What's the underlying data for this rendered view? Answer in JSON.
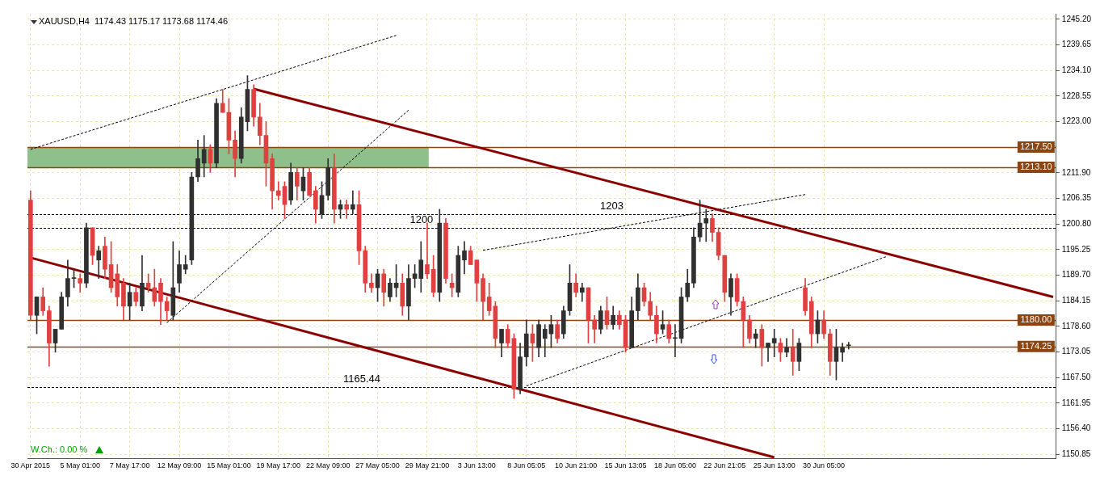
{
  "chart_data": {
    "type": "candlestick",
    "title": "XAUUSD,H4  1174.43 1175.17 1173.68 1174.46",
    "categories": [
      "30 Apr 2015",
      null,
      null,
      null,
      null,
      null,
      null,
      null,
      "5 May 01:00",
      null,
      null,
      null,
      null,
      null,
      null,
      null,
      "7 May 17:00",
      null,
      null,
      null,
      null,
      null,
      null,
      null,
      "12 May 09:00",
      null,
      null,
      null,
      null,
      null,
      null,
      null,
      "15 May 01:00",
      null,
      null,
      null,
      null,
      null,
      null,
      null,
      "19 May 17:00",
      null,
      null,
      null,
      null,
      null,
      null,
      null,
      "22 May 09:00",
      null,
      null,
      null,
      null,
      null,
      null,
      null,
      "27 May 05:00",
      null,
      null,
      null,
      null,
      null,
      null,
      null,
      "29 May 21:00",
      null,
      null,
      null,
      null,
      null,
      null,
      null,
      "3 Jun 13:00",
      null,
      null,
      null,
      null,
      null,
      null,
      null,
      "8 Jun 05:05",
      null,
      null,
      null,
      null,
      null,
      null,
      null,
      "10 Jun 21:00",
      null,
      null,
      null,
      null,
      null,
      null,
      null,
      "15 Jun 13:05",
      null,
      null,
      null,
      null,
      null,
      null,
      null,
      "18 Jun 05:00",
      null,
      null,
      null,
      null,
      null,
      null,
      null,
      "22 Jun 21:05",
      null,
      null,
      null,
      null,
      null,
      null,
      null,
      "25 Jun 13:00",
      null,
      null,
      null,
      null,
      null,
      null,
      null,
      "30 Jun 05:00",
      null,
      null,
      null,
      null,
      null,
      null,
      null,
      null,
      null,
      null,
      null,
      null,
      null,
      null,
      null,
      null,
      null,
      null,
      null,
      null,
      null,
      null,
      null,
      null,
      null,
      null,
      null,
      null,
      null,
      null,
      null,
      null,
      null,
      null,
      null,
      null,
      null
    ],
    "ohlc": [
      [
        1206,
        1208,
        1180,
        1181
      ],
      [
        1181,
        1185,
        1177,
        1185
      ],
      [
        1185,
        1187,
        1181,
        1182
      ],
      [
        1182,
        1183,
        1170,
        1175
      ],
      [
        1175,
        1178,
        1173,
        1178
      ],
      [
        1178,
        1186,
        1178,
        1185
      ],
      [
        1185,
        1193,
        1183,
        1189
      ],
      [
        1189,
        1191,
        1187,
        1189
      ],
      [
        1189,
        1190,
        1186,
        1188
      ],
      [
        1188,
        1201,
        1187,
        1200
      ],
      [
        1200,
        1200,
        1192,
        1194
      ],
      [
        1193,
        1196,
        1189,
        1195
      ],
      [
        1196,
        1198,
        1189,
        1191
      ],
      [
        1192,
        1197,
        1186,
        1187
      ],
      [
        1190,
        1192,
        1183,
        1185
      ],
      [
        1188,
        1189,
        1180,
        1183
      ],
      [
        1183,
        1188,
        1180,
        1186
      ],
      [
        1186,
        1187,
        1183,
        1184
      ],
      [
        1183,
        1194,
        1182,
        1188
      ],
      [
        1188,
        1190,
        1186,
        1187
      ],
      [
        1187,
        1191,
        1183,
        1184
      ],
      [
        1188,
        1189,
        1179,
        1184
      ],
      [
        1184,
        1185,
        1180,
        1182
      ],
      [
        1181,
        1197,
        1180,
        1187
      ],
      [
        1188,
        1195,
        1186,
        1192
      ],
      [
        1191,
        1194,
        1190,
        1192
      ],
      [
        1193,
        1212,
        1192,
        1211
      ],
      [
        1211,
        1219,
        1210,
        1215
      ],
      [
        1214,
        1220,
        1211,
        1217
      ],
      [
        1217,
        1218,
        1212,
        1214
      ],
      [
        1214,
        1228,
        1213,
        1227
      ],
      [
        1227,
        1230,
        1225,
        1225
      ],
      [
        1225,
        1228,
        1216,
        1219
      ],
      [
        1219,
        1221,
        1211,
        1215
      ],
      [
        1215,
        1226,
        1214,
        1224
      ],
      [
        1223,
        1233,
        1221,
        1230
      ],
      [
        1230,
        1231,
        1222,
        1224
      ],
      [
        1224,
        1227,
        1218,
        1220
      ],
      [
        1220,
        1223,
        1209,
        1214
      ],
      [
        1215,
        1216,
        1204,
        1208
      ],
      [
        1208,
        1210,
        1206,
        1207
      ],
      [
        1209,
        1210,
        1202,
        1205
      ],
      [
        1206,
        1214,
        1205,
        1212
      ],
      [
        1212,
        1213,
        1206,
        1209
      ],
      [
        1208,
        1213,
        1206,
        1211
      ],
      [
        1212,
        1213,
        1207,
        1207
      ],
      [
        1208,
        1209,
        1201,
        1204
      ],
      [
        1203,
        1210,
        1202,
        1207
      ],
      [
        1207,
        1215,
        1206,
        1213
      ],
      [
        1213,
        1216,
        1201,
        1204
      ],
      [
        1204,
        1206,
        1202,
        1205
      ],
      [
        1205,
        1206,
        1202,
        1204
      ],
      [
        1204,
        1208,
        1203,
        1205
      ],
      [
        1205,
        1208,
        1192,
        1195
      ],
      [
        1195,
        1196,
        1186,
        1188
      ],
      [
        1188,
        1190,
        1186,
        1187
      ],
      [
        1187,
        1191,
        1184,
        1190
      ],
      [
        1190,
        1191,
        1183,
        1186
      ],
      [
        1185,
        1189,
        1184,
        1188
      ],
      [
        1187,
        1192,
        1185,
        1188
      ],
      [
        1188,
        1190,
        1181,
        1183
      ],
      [
        1183,
        1192,
        1180,
        1189
      ],
      [
        1189,
        1192,
        1187,
        1190
      ],
      [
        1189,
        1197,
        1186,
        1193
      ],
      [
        1192,
        1201,
        1189,
        1190
      ],
      [
        1191,
        1194,
        1185,
        1186
      ],
      [
        1186,
        1204,
        1184,
        1201
      ],
      [
        1201,
        1202,
        1188,
        1189
      ],
      [
        1188,
        1190,
        1185,
        1187
      ],
      [
        1186,
        1196,
        1185,
        1194
      ],
      [
        1193,
        1197,
        1190,
        1195
      ],
      [
        1195,
        1196,
        1192,
        1192
      ],
      [
        1193,
        1193,
        1184,
        1188
      ],
      [
        1189,
        1190,
        1180,
        1184
      ],
      [
        1185,
        1188,
        1181,
        1182
      ],
      [
        1183,
        1184,
        1174,
        1176
      ],
      [
        1175,
        1178,
        1172,
        1178
      ],
      [
        1178,
        1179,
        1174,
        1175
      ],
      [
        1176,
        1177,
        1163,
        1165
      ],
      [
        1165,
        1175,
        1164,
        1172
      ],
      [
        1172,
        1180,
        1170,
        1177
      ],
      [
        1177,
        1179,
        1171,
        1175
      ],
      [
        1174,
        1180,
        1172,
        1179
      ],
      [
        1176,
        1179,
        1172,
        1178
      ],
      [
        1177,
        1181,
        1174,
        1179
      ],
      [
        1179,
        1180,
        1175,
        1176
      ],
      [
        1177,
        1183,
        1176,
        1182
      ],
      [
        1182,
        1192,
        1181,
        1188
      ],
      [
        1188,
        1190,
        1185,
        1186
      ],
      [
        1186,
        1188,
        1184,
        1187
      ],
      [
        1187,
        1187,
        1175,
        1180
      ],
      [
        1180,
        1181,
        1175,
        1178
      ],
      [
        1178,
        1183,
        1177,
        1182
      ],
      [
        1182,
        1185,
        1178,
        1179
      ],
      [
        1179,
        1183,
        1178,
        1181
      ],
      [
        1181,
        1182,
        1178,
        1179
      ],
      [
        1180,
        1181,
        1173,
        1174
      ],
      [
        1174,
        1185,
        1174,
        1182
      ],
      [
        1182,
        1190,
        1180,
        1187
      ],
      [
        1187,
        1188,
        1183,
        1184
      ],
      [
        1184,
        1186,
        1180,
        1181
      ],
      [
        1181,
        1183,
        1175,
        1177
      ],
      [
        1178,
        1182,
        1177,
        1179
      ],
      [
        1179,
        1180,
        1175,
        1176
      ],
      [
        1176,
        1179,
        1172,
        1176
      ],
      [
        1176,
        1187,
        1175,
        1185
      ],
      [
        1185,
        1191,
        1184,
        1188
      ],
      [
        1188,
        1200,
        1187,
        1198
      ],
      [
        1198,
        1206,
        1197,
        1201
      ],
      [
        1201,
        1204,
        1197,
        1202
      ],
      [
        1202,
        1203,
        1197,
        1199
      ],
      [
        1199,
        1200,
        1193,
        1194
      ],
      [
        1194,
        1194,
        1184,
        1186
      ],
      [
        1185,
        1190,
        1181,
        1189
      ],
      [
        1189,
        1190,
        1183,
        1184
      ],
      [
        1184,
        1185,
        1174,
        1180
      ],
      [
        1180,
        1181,
        1175,
        1176
      ],
      [
        1176,
        1178,
        1174,
        1177
      ],
      [
        1178,
        1179,
        1170,
        1174
      ],
      [
        1174,
        1175,
        1171,
        1175
      ],
      [
        1175,
        1178,
        1172,
        1176
      ],
      [
        1175,
        1176,
        1171,
        1173
      ],
      [
        1173,
        1176,
        1172,
        1174
      ],
      [
        1174,
        1178,
        1168,
        1171
      ],
      [
        1171,
        1176,
        1169,
        1175
      ],
      [
        1187,
        1189,
        1181,
        1182
      ],
      [
        1184,
        1185,
        1174,
        1177
      ],
      [
        1177,
        1182,
        1175,
        1180
      ],
      [
        1180,
        1182,
        1176,
        1177
      ],
      [
        1177,
        1178,
        1168,
        1171
      ],
      [
        1171,
        1178,
        1167,
        1174
      ],
      [
        1173,
        1175,
        1171,
        1174
      ],
      [
        1174.43,
        1175.17,
        1173.68,
        1174.46
      ],
      null,
      null,
      null,
      null,
      null,
      null,
      null,
      null,
      null,
      null,
      null,
      null,
      null,
      null,
      null,
      null,
      null,
      null,
      null,
      null,
      null,
      null,
      null,
      null,
      null,
      null,
      null,
      null,
      null,
      null,
      null,
      null,
      null
    ],
    "colors": [
      "#e04040",
      "#303030",
      "#e04040",
      "#e04040",
      "#303030",
      "#303030",
      "#303030",
      "#303030",
      "#e04040",
      "#303030",
      "#e04040",
      "#303030",
      "#e04040",
      "#e04040",
      "#e04040",
      "#e04040",
      "#303030",
      "#e04040",
      "#303030",
      "#e04040",
      "#e04040",
      "#e04040",
      "#e04040",
      "#303030",
      "#303030",
      "#303030",
      "#303030",
      "#303030",
      "#303030",
      "#e04040",
      "#303030",
      "#e04040",
      "#e04040",
      "#e04040",
      "#303030",
      "#303030",
      "#e04040",
      "#e04040",
      "#e04040",
      "#e04040",
      "#e04040",
      "#e04040",
      "#303030",
      "#e04040",
      "#303030",
      "#e04040",
      "#e04040",
      "#303030",
      "#303030",
      "#e04040",
      "#303030",
      "#e04040",
      "#303030",
      "#e04040",
      "#e04040",
      "#e04040",
      "#303030",
      "#e04040",
      "#303030",
      "#303030",
      "#e04040",
      "#303030",
      "#303030",
      "#303030",
      "#e04040",
      "#e04040",
      "#303030",
      "#e04040",
      "#e04040",
      "#303030",
      "#303030",
      "#e04040",
      "#e04040",
      "#e04040",
      "#e04040",
      "#e04040",
      "#303030",
      "#e04040",
      "#e04040",
      "#303030",
      "#303030",
      "#e04040",
      "#303030",
      "#303030",
      "#303030",
      "#e04040",
      "#303030",
      "#303030",
      "#e04040",
      "#303030",
      "#e04040",
      "#e04040",
      "#303030",
      "#e04040",
      "#303030",
      "#e04040",
      "#e04040",
      "#303030",
      "#303030",
      "#e04040",
      "#e04040",
      "#e04040",
      "#303030",
      "#e04040",
      "#303030",
      "#303030",
      "#303030",
      "#303030",
      "#303030",
      "#303030",
      "#e04040",
      "#e04040",
      "#e04040",
      "#303030",
      "#e04040",
      "#e04040",
      "#e04040",
      "#303030",
      "#e04040",
      "#303030",
      "#303030",
      "#e04040",
      "#303030",
      "#e04040",
      "#303030",
      "#e04040",
      "#e04040",
      "#303030",
      "#e04040",
      "#e04040",
      "#303030",
      "#303030",
      "#303030",
      null,
      null,
      null,
      null,
      null,
      null,
      null,
      null,
      null,
      null,
      null,
      null,
      null,
      null,
      null,
      null,
      null,
      null,
      null,
      null,
      null,
      null,
      null,
      null,
      null,
      null,
      null,
      null,
      null,
      null,
      null,
      null,
      null
    ],
    "series": [
      {
        "type": "line",
        "color": "#8b0000",
        "line_style": "solid",
        "values": [
          null,
          null,
          null,
          null,
          null,
          null,
          null,
          null,
          null,
          null,
          null,
          null,
          null,
          null,
          null,
          null,
          null,
          null,
          null,
          null,
          null,
          null,
          null,
          null,
          null,
          null,
          null,
          null,
          null,
          null,
          null,
          null,
          null,
          null,
          null,
          null,
          1230.1,
          null,
          null,
          null,
          null,
          null,
          null,
          null,
          null,
          null,
          null,
          null,
          null,
          null,
          null,
          null,
          null,
          null,
          null,
          null,
          null,
          null,
          null,
          null,
          null,
          null,
          null,
          null,
          null,
          null,
          null,
          null,
          null,
          null,
          null,
          null,
          null,
          null,
          null,
          null,
          null,
          null,
          null,
          null,
          null,
          null,
          null,
          null,
          null,
          null,
          null,
          null,
          null,
          null,
          null,
          null,
          null,
          null,
          null,
          null,
          null,
          null,
          null,
          null,
          null,
          null,
          null,
          null,
          null,
          null,
          null,
          null,
          null,
          null,
          null,
          null,
          null,
          null,
          null,
          null,
          null,
          null,
          null,
          null,
          null,
          null,
          null,
          null,
          null,
          null,
          null,
          null,
          null,
          null,
          null,
          null,
          null,
          null,
          null,
          null,
          null,
          null,
          null,
          null,
          null,
          null,
          null,
          null,
          null,
          null,
          null,
          null,
          null,
          null,
          null,
          null,
          null,
          null,
          null,
          null,
          null,
          null,
          null,
          null,
          null,
          null,
          null,
          null,
          null,
          1185.0
        ]
      },
      {
        "type": "line",
        "color": "#8b0000",
        "line_style": "solid",
        "values": [
          1193.5,
          null,
          null,
          null,
          null,
          null,
          null,
          null,
          null,
          null,
          null,
          null,
          null,
          null,
          null,
          null,
          null,
          null,
          null,
          null,
          null,
          null,
          null,
          null,
          null,
          null,
          null,
          null,
          null,
          null,
          null,
          null,
          null,
          null,
          null,
          null,
          null,
          null,
          null,
          null,
          null,
          null,
          null,
          null,
          null,
          null,
          null,
          null,
          null,
          null,
          null,
          null,
          null,
          null,
          null,
          null,
          null,
          null,
          null,
          null,
          null,
          null,
          null,
          null,
          null,
          null,
          null,
          null,
          null,
          null,
          null,
          null,
          null,
          null,
          null,
          null,
          null,
          null,
          null,
          null,
          null,
          null,
          null,
          null,
          null,
          null,
          null,
          null,
          null,
          null,
          null,
          null,
          null,
          null,
          null,
          null,
          null,
          null,
          null,
          null,
          null,
          null,
          null,
          null,
          null,
          null,
          null,
          null,
          null,
          null,
          null,
          null,
          null,
          null,
          null,
          null,
          null,
          null,
          null,
          null,
          1150.2,
          null,
          null,
          null,
          null,
          null,
          null,
          null,
          null,
          null,
          null,
          null,
          null,
          null,
          null,
          null,
          null,
          null,
          null,
          null,
          null,
          null,
          null,
          null,
          null,
          null,
          null,
          null,
          null,
          null,
          null,
          null,
          null,
          null,
          null,
          null,
          null,
          null,
          null,
          null,
          null,
          null,
          null,
          null,
          null,
          null
        ]
      },
      {
        "type": "line",
        "color": "#000000",
        "line_style": "dashed",
        "values": [
          1217.0,
          null,
          null,
          null,
          null,
          null,
          null,
          null,
          null,
          null,
          null,
          null,
          null,
          null,
          null,
          null,
          null,
          null,
          null,
          null,
          null,
          null,
          null,
          null,
          null,
          null,
          null,
          null,
          null,
          null,
          null,
          null,
          null,
          null,
          null,
          null,
          null,
          null,
          null,
          null,
          null,
          null,
          null,
          null,
          null,
          null,
          null,
          null,
          null,
          null,
          null,
          null,
          null,
          null,
          null,
          null,
          null,
          null,
          null,
          1241.7,
          null,
          null,
          null,
          null,
          null,
          null,
          null,
          null,
          null,
          null,
          null,
          null,
          null,
          null,
          null,
          null,
          null,
          null,
          null,
          null,
          null,
          null,
          null,
          null,
          null,
          null,
          null,
          null,
          null,
          null,
          null,
          null,
          null,
          null,
          null,
          null,
          null,
          null,
          null,
          null,
          null,
          null,
          null,
          null,
          null,
          null,
          null,
          null,
          null,
          null,
          null,
          null,
          null,
          null,
          null,
          null,
          null,
          null,
          null,
          null,
          null,
          null,
          null,
          null,
          null,
          null,
          null,
          null,
          null,
          null,
          null,
          null,
          null,
          null,
          null,
          null,
          null,
          null,
          null,
          null,
          null,
          null,
          null,
          null,
          null,
          null,
          null,
          null,
          null,
          null,
          null,
          null,
          null,
          null,
          null,
          null,
          null,
          null,
          null,
          null,
          null,
          null,
          null,
          null,
          null,
          null
        ]
      },
      {
        "type": "line",
        "color": "#000000",
        "line_style": "dashed",
        "values": [
          null,
          null,
          null,
          null,
          null,
          null,
          null,
          null,
          null,
          null,
          null,
          null,
          null,
          null,
          null,
          null,
          null,
          null,
          null,
          null,
          null,
          null,
          1179.4,
          null,
          null,
          null,
          null,
          null,
          null,
          null,
          null,
          null,
          null,
          null,
          null,
          null,
          null,
          null,
          null,
          null,
          null,
          null,
          null,
          null,
          null,
          null,
          null,
          null,
          null,
          null,
          null,
          null,
          null,
          null,
          null,
          null,
          null,
          null,
          null,
          null,
          null,
          1225.5,
          null,
          null,
          null,
          null,
          null,
          null,
          null,
          null,
          null,
          null,
          null,
          null,
          null,
          null,
          null,
          null,
          null,
          null,
          null,
          null,
          null,
          null,
          null,
          null,
          null,
          null,
          null,
          null,
          null,
          null,
          null,
          null,
          null,
          null,
          null,
          null,
          null,
          null,
          null,
          null,
          null,
          null,
          null,
          null,
          null,
          null,
          null,
          null,
          null,
          null,
          null,
          null,
          null,
          null,
          null,
          null,
          null,
          null,
          null,
          null,
          null,
          null,
          null,
          null,
          null,
          null,
          null,
          null,
          null,
          null,
          null,
          null,
          null,
          null,
          null,
          null,
          null,
          null,
          null,
          null,
          null,
          null,
          null,
          null,
          null,
          null,
          null,
          null,
          null,
          null,
          null,
          null,
          null,
          null,
          null,
          null,
          null,
          null,
          null,
          null,
          null,
          null,
          null,
          null
        ]
      },
      {
        "type": "line",
        "color": "#000000",
        "line_style": "dashed",
        "values": [
          null,
          null,
          null,
          null,
          null,
          null,
          null,
          null,
          null,
          null,
          null,
          null,
          null,
          null,
          null,
          null,
          null,
          null,
          null,
          null,
          null,
          null,
          null,
          null,
          null,
          null,
          null,
          null,
          null,
          null,
          null,
          null,
          null,
          null,
          null,
          null,
          null,
          null,
          null,
          null,
          null,
          null,
          null,
          null,
          null,
          null,
          null,
          null,
          null,
          null,
          null,
          null,
          null,
          null,
          null,
          null,
          null,
          null,
          null,
          null,
          null,
          null,
          null,
          null,
          null,
          null,
          null,
          null,
          null,
          null,
          null,
          null,
          null,
          null,
          null,
          null,
          null,
          null,
          null,
          null,
          1165.7,
          null,
          null,
          null,
          null,
          null,
          null,
          null,
          null,
          null,
          null,
          null,
          null,
          null,
          null,
          null,
          null,
          null,
          null,
          null,
          null,
          null,
          null,
          null,
          null,
          null,
          null,
          null,
          null,
          null,
          null,
          null,
          null,
          null,
          null,
          null,
          null,
          null,
          null,
          null,
          null,
          null,
          null,
          null,
          null,
          null,
          null,
          null,
          null,
          null,
          null,
          null,
          null,
          null,
          null,
          null,
          null,
          null,
          1193.7,
          null,
          null,
          null,
          null,
          null,
          null,
          null,
          null,
          null,
          null,
          null,
          null,
          null,
          null,
          null,
          null,
          null,
          null,
          null,
          null,
          null,
          null,
          null,
          null,
          null,
          null,
          null
        ]
      },
      {
        "type": "line",
        "color": "#000000",
        "line_style": "dashed",
        "values": [
          null,
          null,
          null,
          null,
          null,
          null,
          null,
          null,
          null,
          null,
          null,
          null,
          null,
          null,
          null,
          null,
          null,
          null,
          null,
          null,
          null,
          null,
          null,
          null,
          null,
          null,
          null,
          null,
          null,
          null,
          null,
          null,
          null,
          null,
          null,
          null,
          null,
          null,
          null,
          null,
          null,
          null,
          null,
          null,
          null,
          null,
          null,
          null,
          null,
          null,
          null,
          null,
          null,
          null,
          null,
          null,
          null,
          null,
          null,
          null,
          null,
          null,
          null,
          null,
          null,
          null,
          null,
          null,
          null,
          null,
          null,
          null,
          null,
          1195.1,
          null,
          null,
          null,
          null,
          null,
          null,
          null,
          null,
          null,
          null,
          null,
          null,
          null,
          null,
          null,
          null,
          null,
          null,
          null,
          null,
          null,
          null,
          null,
          null,
          null,
          null,
          null,
          null,
          null,
          null,
          null,
          null,
          null,
          null,
          null,
          null,
          null,
          null,
          null,
          null,
          null,
          null,
          null,
          null,
          null,
          null,
          null,
          null,
          null,
          null,
          null,
          1207.2,
          null,
          null,
          null,
          null,
          null,
          null,
          null,
          null,
          null,
          null,
          null,
          null,
          null,
          null,
          null,
          null,
          null,
          null,
          null,
          null,
          null,
          null,
          null,
          null,
          null,
          null,
          null,
          null,
          null,
          null,
          null,
          null,
          null,
          null,
          null,
          null,
          null,
          null,
          null,
          null
        ]
      }
    ],
    "ylim": [
      1150.0,
      1246.4
    ],
    "yticks": [
      {
        "value": 1150.85,
        "label": "1150.85"
      },
      {
        "value": 1156.4,
        "label": "1156.40"
      },
      {
        "value": 1161.95,
        "label": "1161.95"
      },
      {
        "value": 1167.5,
        "label": "1167.50"
      },
      {
        "value": 1173.05,
        "label": "1173.05"
      },
      {
        "value": 1178.6,
        "label": "1178.60"
      },
      {
        "value": 1184.15,
        "label": "1184.15"
      },
      {
        "value": 1189.7,
        "label": "1189.70"
      },
      {
        "value": 1195.25,
        "label": "1195.25"
      },
      {
        "value": 1200.8,
        "label": "1200.80"
      },
      {
        "value": 1206.35,
        "label": "1206.35"
      },
      {
        "value": 1211.9,
        "label": "1211.90"
      },
      {
        "value": 1223.0,
        "label": "1223.00"
      },
      {
        "value": 1228.55,
        "label": "1228.55"
      },
      {
        "value": 1234.1,
        "label": "1234.10"
      },
      {
        "value": 1239.65,
        "label": "1239.65"
      },
      {
        "value": 1245.2,
        "label": "1245.20"
      }
    ],
    "grid": true,
    "bands": [
      {
        "axis": "y",
        "from": 1213.1,
        "to": 1217.5,
        "color": "#8fbf8a"
      }
    ],
    "ref_lines": [
      {
        "axis": "y",
        "value": 1217.5,
        "label": "1217.50",
        "color": "#8b4513",
        "line_style": "solid"
      },
      {
        "axis": "y",
        "value": 1213.1,
        "label": "1213.10",
        "color": "#8b4513",
        "line_style": "solid"
      },
      {
        "axis": "y",
        "value": 1180,
        "label": "1180.00",
        "color": "#8b4513",
        "line_style": "solid"
      },
      {
        "axis": "y",
        "value": 1174.25,
        "label": "1174.25",
        "color": "#8b4513",
        "line_style": "solid"
      },
      {
        "axis": "y",
        "value": 1203,
        "label": "1203",
        "color": "#000000",
        "line_style": "dashed"
      },
      {
        "axis": "y",
        "value": 1200,
        "label": "1200",
        "color": "#000000",
        "line_style": "dashed"
      },
      {
        "axis": "y",
        "value": 1165.44,
        "label": "1165.44",
        "color": "#000000",
        "line_style": "dashed"
      }
    ],
    "annotations": [
      "W.Ch.: 0.00 %"
    ]
  }
}
